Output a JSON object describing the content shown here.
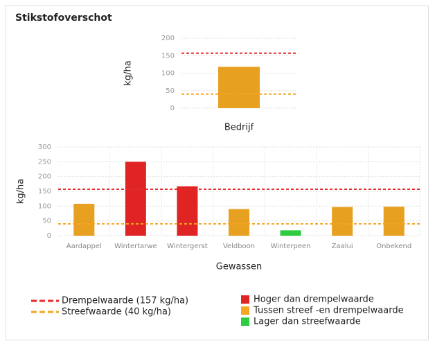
{
  "title": "Stikstofoverschot",
  "chart_data": [
    {
      "type": "bar",
      "ylabel": "kg/ha",
      "categories": [
        "Bedrijf"
      ],
      "values": [
        118
      ],
      "colors": [
        "#e8a020"
      ],
      "ylim": [
        0,
        200
      ],
      "yticks": [
        0,
        50,
        100,
        150,
        200
      ],
      "grid": true,
      "reference_lines": [
        {
          "value": 157,
          "color": "#e52b2b"
        },
        {
          "value": 40,
          "color": "#f5a623"
        }
      ]
    },
    {
      "type": "bar",
      "ylabel": "kg/ha",
      "xlabel": "Gewassen",
      "categories": [
        "Aardappel",
        "Wintertarwe",
        "Wintergerst",
        "Veldboon",
        "Winterpeen",
        "Zaalui",
        "Onbekend"
      ],
      "values": [
        108,
        250,
        167,
        90,
        18,
        97,
        98
      ],
      "colors": [
        "#e8a020",
        "#e02424",
        "#e02424",
        "#e8a020",
        "#2ecc40",
        "#e8a020",
        "#e8a020"
      ],
      "ylim": [
        0,
        300
      ],
      "yticks": [
        0,
        50,
        100,
        150,
        200,
        250,
        300
      ],
      "grid": true,
      "reference_lines": [
        {
          "value": 157,
          "color": "#e52b2b"
        },
        {
          "value": 40,
          "color": "#f5a623"
        }
      ]
    }
  ],
  "legend": {
    "lines": [
      {
        "label": "Drempelwaarde (157 kg/ha)",
        "color": "#e52b2b"
      },
      {
        "label": "Streefwaarde (40 kg/ha)",
        "color": "#f5a623"
      }
    ],
    "boxes": [
      {
        "label": "Hoger dan drempelwaarde",
        "color": "#e02424"
      },
      {
        "label": "Tussen streef -en drempelwaarde",
        "color": "#f5a623"
      },
      {
        "label": "Lager dan streefwaarde",
        "color": "#2ecc40"
      }
    ]
  }
}
